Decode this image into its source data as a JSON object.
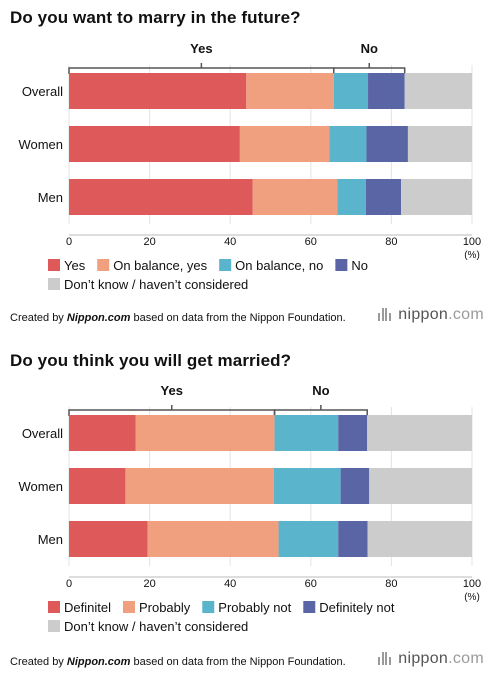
{
  "chart_data": [
    {
      "type": "bar",
      "orientation": "horizontal",
      "stacked": true,
      "title": "Do you want to marry in the future?",
      "categories": [
        "Overall",
        "Women",
        "Men"
      ],
      "series": [
        {
          "name": "Yes",
          "color": "#de5a5a",
          "values": [
            44,
            42.4,
            45.6
          ]
        },
        {
          "name": "On balance, yes",
          "color": "#f0a07e",
          "values": [
            21.7,
            22.2,
            21
          ]
        },
        {
          "name": "On balance, no",
          "color": "#5ab4cc",
          "values": [
            8.5,
            9.2,
            7.1
          ]
        },
        {
          "name": "No",
          "color": "#5a65a6",
          "values": [
            9.1,
            10.3,
            8.7
          ]
        },
        {
          "name": "Don’t know / haven’t considered",
          "color": "#cccccc",
          "values": [
            16.7,
            15.9,
            17.6
          ]
        }
      ],
      "groups": [
        {
          "label": "Yes",
          "start": 0,
          "end": 65.7
        },
        {
          "label": "No",
          "start": 65.7,
          "end": 83.3
        }
      ],
      "x_ticks": [
        0,
        20,
        40,
        60,
        80,
        100
      ],
      "x_unit": "(%)",
      "xlim": [
        0,
        100
      ],
      "grid": true,
      "credit": {
        "prefix": "Created by ",
        "site": "Nippon.com",
        "suffix": " based on data from the Nippon Foundation."
      }
    },
    {
      "type": "bar",
      "orientation": "horizontal",
      "stacked": true,
      "title": "Do you think you will get married?",
      "categories": [
        "Overall",
        "Women",
        "Men"
      ],
      "series": [
        {
          "name": "Definitel",
          "color": "#de5a5a",
          "values": [
            16.5,
            14,
            19.5
          ]
        },
        {
          "name": "Probably",
          "color": "#f0a07e",
          "values": [
            34.5,
            36.8,
            32.5
          ]
        },
        {
          "name": "Probably not",
          "color": "#5ab4cc",
          "values": [
            15.8,
            16.6,
            14.8
          ]
        },
        {
          "name": "Definitely not",
          "color": "#5a65a6",
          "values": [
            7.2,
            7.1,
            7.3
          ]
        },
        {
          "name": "Don’t know / haven’t considered",
          "color": "#cccccc",
          "values": [
            26,
            25.5,
            25.9
          ]
        }
      ],
      "groups": [
        {
          "label": "Yes",
          "start": 0,
          "end": 51
        },
        {
          "label": "No",
          "start": 51,
          "end": 74
        }
      ],
      "x_ticks": [
        0,
        20,
        40,
        60,
        80,
        100
      ],
      "x_unit": "(%)",
      "xlim": [
        0,
        100
      ],
      "grid": true,
      "credit": {
        "prefix": "Created by ",
        "site": "Nippon.com",
        "suffix": " based on data from the Nippon Foundation."
      }
    }
  ],
  "brand": {
    "name": "nippon",
    "suffix": ".com"
  }
}
